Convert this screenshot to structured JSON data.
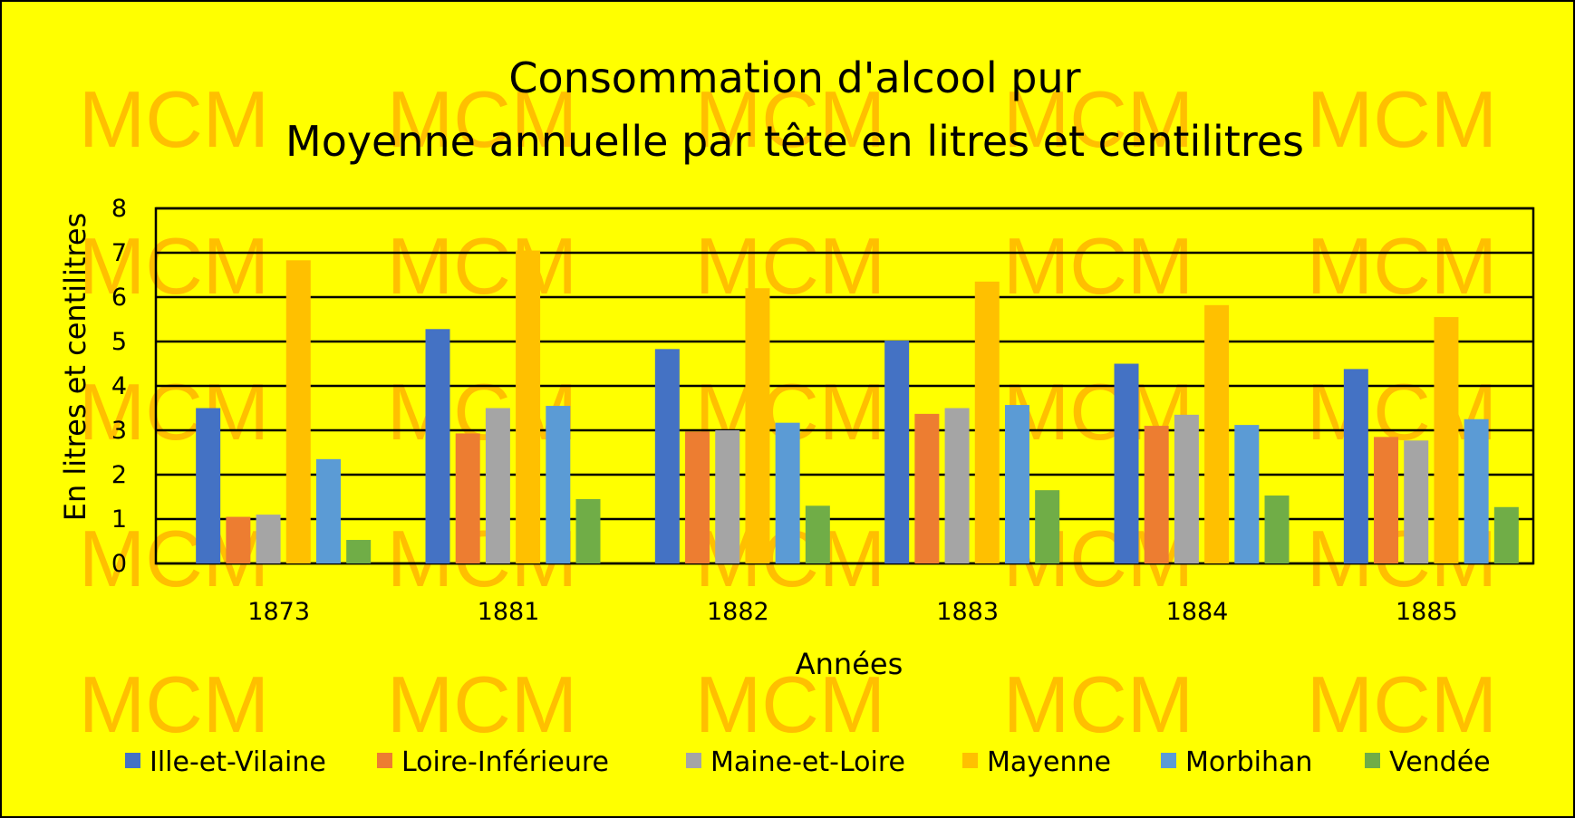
{
  "chart_data": {
    "type": "bar",
    "title": [
      "Consommation d'alcool pur",
      "Moyenne annuelle par tête en litres et centilitres"
    ],
    "xlabel": "Années",
    "ylabel": "En litres et centilitres",
    "categories": [
      "1873",
      "1881",
      "1882",
      "1883",
      "1884",
      "1885"
    ],
    "ylim": [
      0,
      8
    ],
    "yticks": [
      0,
      1,
      2,
      3,
      4,
      5,
      6,
      7,
      8
    ],
    "grid": true,
    "legend_position": "bottom",
    "series": [
      {
        "name": "Ille-et-Vilaine",
        "color": "#4472c4",
        "values": [
          3.5,
          5.28,
          4.83,
          5.02,
          4.5,
          4.38
        ]
      },
      {
        "name": "Loire-Inférieure",
        "color": "#ed7d31",
        "values": [
          1.05,
          2.93,
          2.97,
          3.37,
          3.1,
          2.85
        ]
      },
      {
        "name": "Maine-et-Loire",
        "color": "#a5a5a5",
        "values": [
          1.1,
          3.5,
          3.0,
          3.5,
          3.35,
          2.77
        ]
      },
      {
        "name": "Mayenne",
        "color": "#ffc000",
        "values": [
          6.83,
          7.05,
          6.2,
          6.35,
          5.82,
          5.55
        ]
      },
      {
        "name": "Morbihan",
        "color": "#5b9bd5",
        "values": [
          2.35,
          3.55,
          3.17,
          3.57,
          3.12,
          3.25
        ]
      },
      {
        "name": "Vendée",
        "color": "#70ad47",
        "values": [
          0.53,
          1.45,
          1.3,
          1.65,
          1.53,
          1.27
        ]
      }
    ]
  },
  "watermark": {
    "text": "MCM",
    "color": "#ff8c00"
  }
}
